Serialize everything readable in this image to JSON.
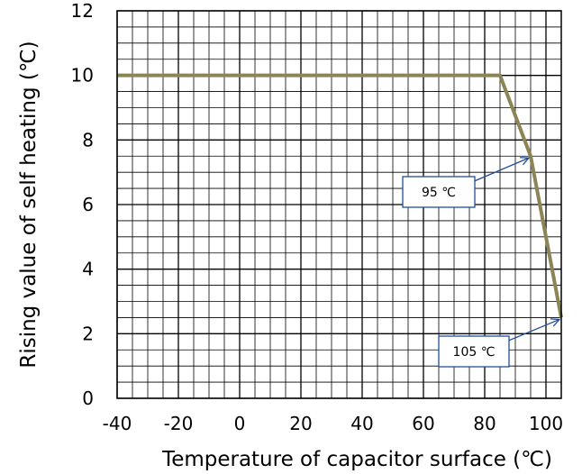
{
  "chart_data": {
    "type": "line",
    "title": "",
    "xlabel": "Temperature of capacitor surface (℃)",
    "ylabel": "Rising value of self heating (℃)",
    "xlim": [
      -40,
      105
    ],
    "ylim": [
      0,
      12
    ],
    "xticks": [
      -40,
      -20,
      0,
      20,
      40,
      60,
      80,
      100
    ],
    "yticks": [
      0,
      2,
      4,
      6,
      8,
      10,
      12
    ],
    "grid": true,
    "series": [
      {
        "color": "#8b8454",
        "x": [
          -40,
          85,
          95,
          105
        ],
        "y": [
          10,
          10,
          7.5,
          2.5
        ]
      }
    ],
    "annotations": [
      {
        "text": "95 ℃",
        "x": 95,
        "y": 7.5
      },
      {
        "text": "105 ℃",
        "x": 105,
        "y": 2.5
      }
    ]
  }
}
